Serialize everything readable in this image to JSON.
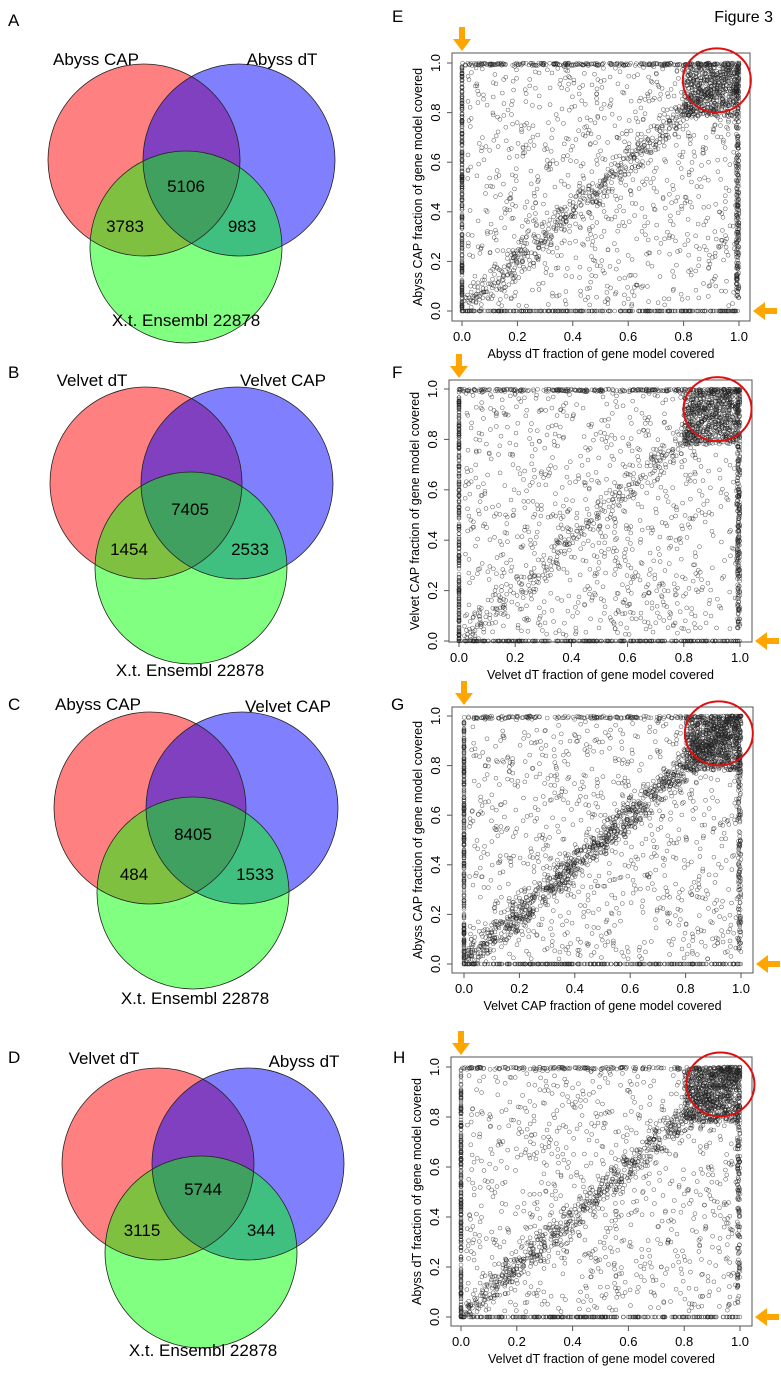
{
  "figure_title": "Figure 3",
  "chart_data": [
    {
      "type": "venn",
      "panel": "A",
      "sets": [
        "Abyss CAP",
        "Abyss dT",
        "X.t. Ensembl 22878"
      ],
      "set_colors": [
        "#ff8080",
        "#8080ff",
        "#80ff80"
      ],
      "regions": {
        "all_three": 5106,
        "set1_and_set3": 3783,
        "set2_and_set3": 983
      }
    },
    {
      "type": "venn",
      "panel": "B",
      "sets": [
        "Velvet dT",
        "Velvet CAP",
        "X.t. Ensembl 22878"
      ],
      "set_colors": [
        "#ff8080",
        "#8080ff",
        "#80ff80"
      ],
      "regions": {
        "all_three": 7405,
        "set1_and_set3": 1454,
        "set2_and_set3": 2533
      }
    },
    {
      "type": "venn",
      "panel": "C",
      "sets": [
        "Abyss CAP",
        "Velvet CAP",
        "X.t. Ensembl 22878"
      ],
      "set_colors": [
        "#ff8080",
        "#8080ff",
        "#80ff80"
      ],
      "regions": {
        "all_three": 8405,
        "set1_and_set3": 484,
        "set2_and_set3": 1533
      }
    },
    {
      "type": "venn",
      "panel": "D",
      "sets": [
        "Velvet dT",
        "Abyss dT",
        "X.t. Ensembl 22878"
      ],
      "set_colors": [
        "#ff8080",
        "#8080ff",
        "#80ff80"
      ],
      "regions": {
        "all_three": 5744,
        "set1_and_set3": 3115,
        "set2_and_set3": 344
      }
    },
    {
      "type": "scatter",
      "panel": "E",
      "xlabel": "Abyss dT fraction of gene model covered",
      "ylabel": "Abyss CAP fraction of gene model covered",
      "xlim": [
        0,
        1
      ],
      "ylim": [
        0,
        1
      ],
      "xticks": [
        "0.0",
        "0.2",
        "0.4",
        "0.6",
        "0.8",
        "1.0"
      ],
      "yticks": [
        "0.0",
        "0.2",
        "0.4",
        "0.6",
        "0.8",
        "1.0"
      ],
      "marker": "open-circle",
      "annotations": [
        {
          "type": "circle",
          "color": "#dd1111",
          "center": [
            0.92,
            0.93
          ],
          "label": "high-coverage cluster"
        },
        {
          "type": "arrow",
          "color": "#ffa500",
          "points_to": [
            0,
            1
          ],
          "direction": "down"
        },
        {
          "type": "arrow",
          "color": "#ffa500",
          "points_to": [
            1,
            0
          ],
          "direction": "left"
        }
      ],
      "distribution": {
        "diagonal_density": 0.25,
        "cluster_density": 0.2,
        "edge_density": "high"
      }
    },
    {
      "type": "scatter",
      "panel": "F",
      "xlabel": "Velvet dT fraction of gene model covered",
      "ylabel": "Velvet CAP fraction of gene model covered",
      "xlim": [
        0,
        1
      ],
      "ylim": [
        0,
        1
      ],
      "xticks": [
        "0.0",
        "0.2",
        "0.4",
        "0.6",
        "0.8",
        "1.0"
      ],
      "yticks": [
        "0.0",
        "0.2",
        "0.4",
        "0.6",
        "0.8",
        "1.0"
      ],
      "marker": "open-circle",
      "annotations": [
        {
          "type": "circle",
          "color": "#dd1111",
          "center": [
            0.92,
            0.92
          ],
          "label": "high-coverage cluster"
        },
        {
          "type": "arrow",
          "color": "#ffa500",
          "points_to": [
            0,
            1
          ],
          "direction": "down"
        },
        {
          "type": "arrow",
          "color": "#ffa500",
          "points_to": [
            1,
            0
          ],
          "direction": "left"
        }
      ],
      "distribution": {
        "diagonal_density": 0.15,
        "cluster_density": 0.25,
        "edge_density": "high"
      }
    },
    {
      "type": "scatter",
      "panel": "G",
      "xlabel": "Velvet CAP fraction of gene model covered",
      "ylabel": "Abyss CAP fraction of gene model covered",
      "xlim": [
        0,
        1
      ],
      "ylim": [
        0,
        1
      ],
      "xticks": [
        "0.0",
        "0.2",
        "0.4",
        "0.6",
        "0.8",
        "1.0"
      ],
      "yticks": [
        "0.0",
        "0.2",
        "0.4",
        "0.6",
        "0.8",
        "1.0"
      ],
      "marker": "open-circle",
      "annotations": [
        {
          "type": "circle",
          "color": "#dd1111",
          "center": [
            0.92,
            0.93
          ],
          "label": "high-coverage cluster"
        },
        {
          "type": "arrow",
          "color": "#ffa500",
          "points_to": [
            0,
            1
          ],
          "direction": "down"
        },
        {
          "type": "arrow",
          "color": "#ffa500",
          "points_to": [
            1,
            0
          ],
          "direction": "left"
        }
      ],
      "distribution": {
        "diagonal_density": 0.45,
        "cluster_density": 0.3,
        "edge_density": "medium"
      }
    },
    {
      "type": "scatter",
      "panel": "H",
      "xlabel": "Velvet dT fraction of gene model covered",
      "ylabel": "Abyss dT fraction of gene model covered",
      "xlim": [
        0,
        1
      ],
      "ylim": [
        0,
        1
      ],
      "xticks": [
        "0.0",
        "0.2",
        "0.4",
        "0.6",
        "0.8",
        "1.0"
      ],
      "yticks": [
        "0.0",
        "0.2",
        "0.4",
        "0.6",
        "0.8",
        "1.0"
      ],
      "marker": "open-circle",
      "annotations": [
        {
          "type": "circle",
          "color": "#dd1111",
          "center": [
            0.93,
            0.93
          ],
          "label": "high-coverage cluster"
        },
        {
          "type": "arrow",
          "color": "#ffa500",
          "points_to": [
            0,
            1
          ],
          "direction": "down"
        },
        {
          "type": "arrow",
          "color": "#ffa500",
          "points_to": [
            1,
            0
          ],
          "direction": "left"
        }
      ],
      "distribution": {
        "diagonal_density": 0.3,
        "cluster_density": 0.3,
        "edge_density": "medium"
      }
    }
  ]
}
